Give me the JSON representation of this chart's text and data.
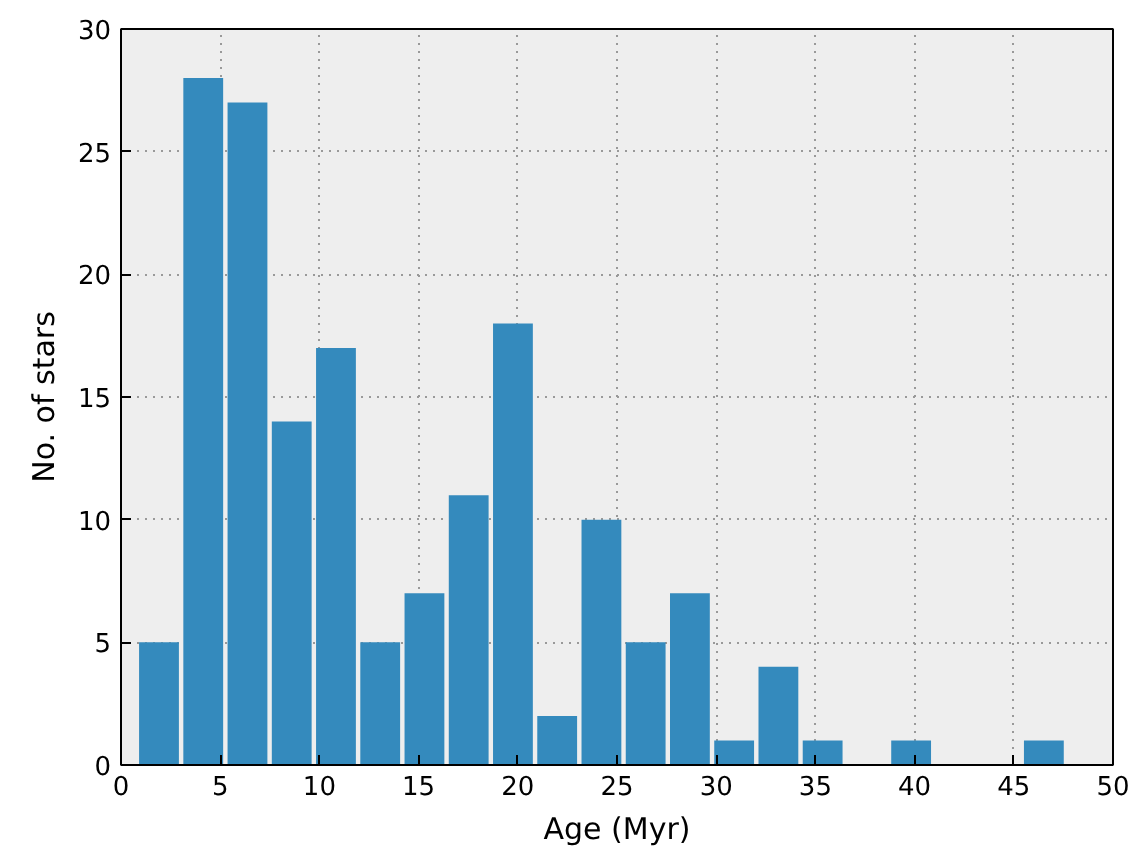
{
  "chart_data": {
    "type": "histogram",
    "xlabel": "Age (Myr)",
    "ylabel": "No. of stars",
    "bins": [
      0.8,
      3.03,
      5.26,
      7.49,
      9.72,
      11.95,
      14.18,
      16.41,
      18.64,
      20.87,
      23.1,
      25.33,
      27.56,
      29.79,
      32.02,
      34.25,
      36.48,
      38.71,
      40.94,
      43.17,
      45.4,
      47.63
    ],
    "values": [
      5,
      28,
      27,
      14,
      17,
      5,
      7,
      11,
      18,
      2,
      10,
      5,
      7,
      1,
      4,
      1,
      0,
      1,
      0,
      0,
      1
    ],
    "color": "#348abd",
    "xlim": [
      0,
      50
    ],
    "xticks": [
      0,
      5,
      10,
      15,
      20,
      25,
      30,
      35,
      40,
      45,
      50
    ],
    "ylim": [
      0,
      30
    ],
    "yticks": [
      0,
      5,
      10,
      15,
      20,
      25,
      30
    ],
    "grid": true
  }
}
